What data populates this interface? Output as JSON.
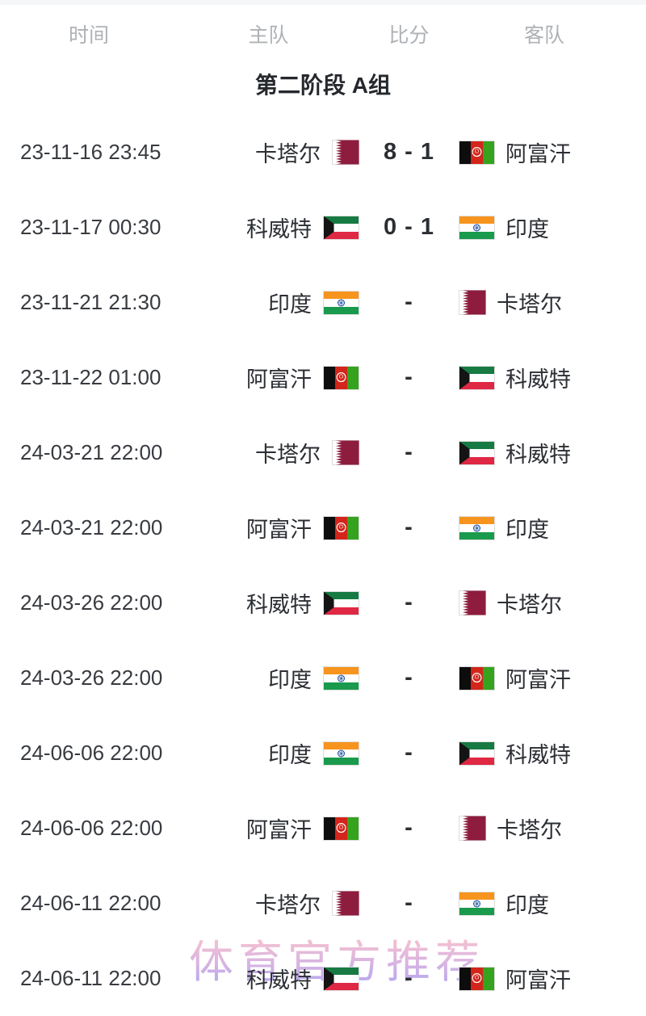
{
  "header": {
    "columns": [
      "时间",
      "主队",
      "比分",
      "客队"
    ]
  },
  "section_title": "第二阶段 A组",
  "watermark": "体育官方推荐",
  "colors": {
    "qatar_maroon": "#8d1c3e",
    "afghan_black": "#0d0d0d",
    "afghan_red": "#d3251a",
    "afghan_green": "#35a31e",
    "kuwait_green": "#177a42",
    "kuwait_red": "#df2843",
    "kuwait_black": "#141414",
    "india_saffron": "#f7941e",
    "india_green": "#1a9a4c",
    "india_navy": "#1a4c9e",
    "flag_border": "#dddddd",
    "header_gray": "#aeb2b6",
    "text_dark": "#2b2e33",
    "watermark_pink": "#f6bcca",
    "watermark_purple": "#b2a0ef"
  },
  "matches": [
    {
      "time": "23-11-16 23:45",
      "home": {
        "name": "卡塔尔",
        "flag": "qatar-flag"
      },
      "score": "8 - 1",
      "away": {
        "name": "阿富汗",
        "flag": "afghanistan-flag"
      }
    },
    {
      "time": "23-11-17 00:30",
      "home": {
        "name": "科威特",
        "flag": "kuwait-flag"
      },
      "score": "0 - 1",
      "away": {
        "name": "印度",
        "flag": "india-flag"
      }
    },
    {
      "time": "23-11-21 21:30",
      "home": {
        "name": "印度",
        "flag": "india-flag"
      },
      "score": "-",
      "away": {
        "name": "卡塔尔",
        "flag": "qatar-flag"
      }
    },
    {
      "time": "23-11-22 01:00",
      "home": {
        "name": "阿富汗",
        "flag": "afghanistan-flag"
      },
      "score": "-",
      "away": {
        "name": "科威特",
        "flag": "kuwait-flag"
      }
    },
    {
      "time": "24-03-21 22:00",
      "home": {
        "name": "卡塔尔",
        "flag": "qatar-flag"
      },
      "score": "-",
      "away": {
        "name": "科威特",
        "flag": "kuwait-flag"
      }
    },
    {
      "time": "24-03-21 22:00",
      "home": {
        "name": "阿富汗",
        "flag": "afghanistan-flag"
      },
      "score": "-",
      "away": {
        "name": "印度",
        "flag": "india-flag"
      }
    },
    {
      "time": "24-03-26 22:00",
      "home": {
        "name": "科威特",
        "flag": "kuwait-flag"
      },
      "score": "-",
      "away": {
        "name": "卡塔尔",
        "flag": "qatar-flag"
      }
    },
    {
      "time": "24-03-26 22:00",
      "home": {
        "name": "印度",
        "flag": "india-flag"
      },
      "score": "-",
      "away": {
        "name": "阿富汗",
        "flag": "afghanistan-flag"
      }
    },
    {
      "time": "24-06-06 22:00",
      "home": {
        "name": "印度",
        "flag": "india-flag"
      },
      "score": "-",
      "away": {
        "name": "科威特",
        "flag": "kuwait-flag"
      }
    },
    {
      "time": "24-06-06 22:00",
      "home": {
        "name": "阿富汗",
        "flag": "afghanistan-flag"
      },
      "score": "-",
      "away": {
        "name": "卡塔尔",
        "flag": "qatar-flag"
      }
    },
    {
      "time": "24-06-11 22:00",
      "home": {
        "name": "卡塔尔",
        "flag": "qatar-flag"
      },
      "score": "-",
      "away": {
        "name": "印度",
        "flag": "india-flag"
      }
    },
    {
      "time": "24-06-11 22:00",
      "home": {
        "name": "科威特",
        "flag": "kuwait-flag"
      },
      "score": "-",
      "away": {
        "name": "阿富汗",
        "flag": "afghanistan-flag"
      }
    }
  ]
}
